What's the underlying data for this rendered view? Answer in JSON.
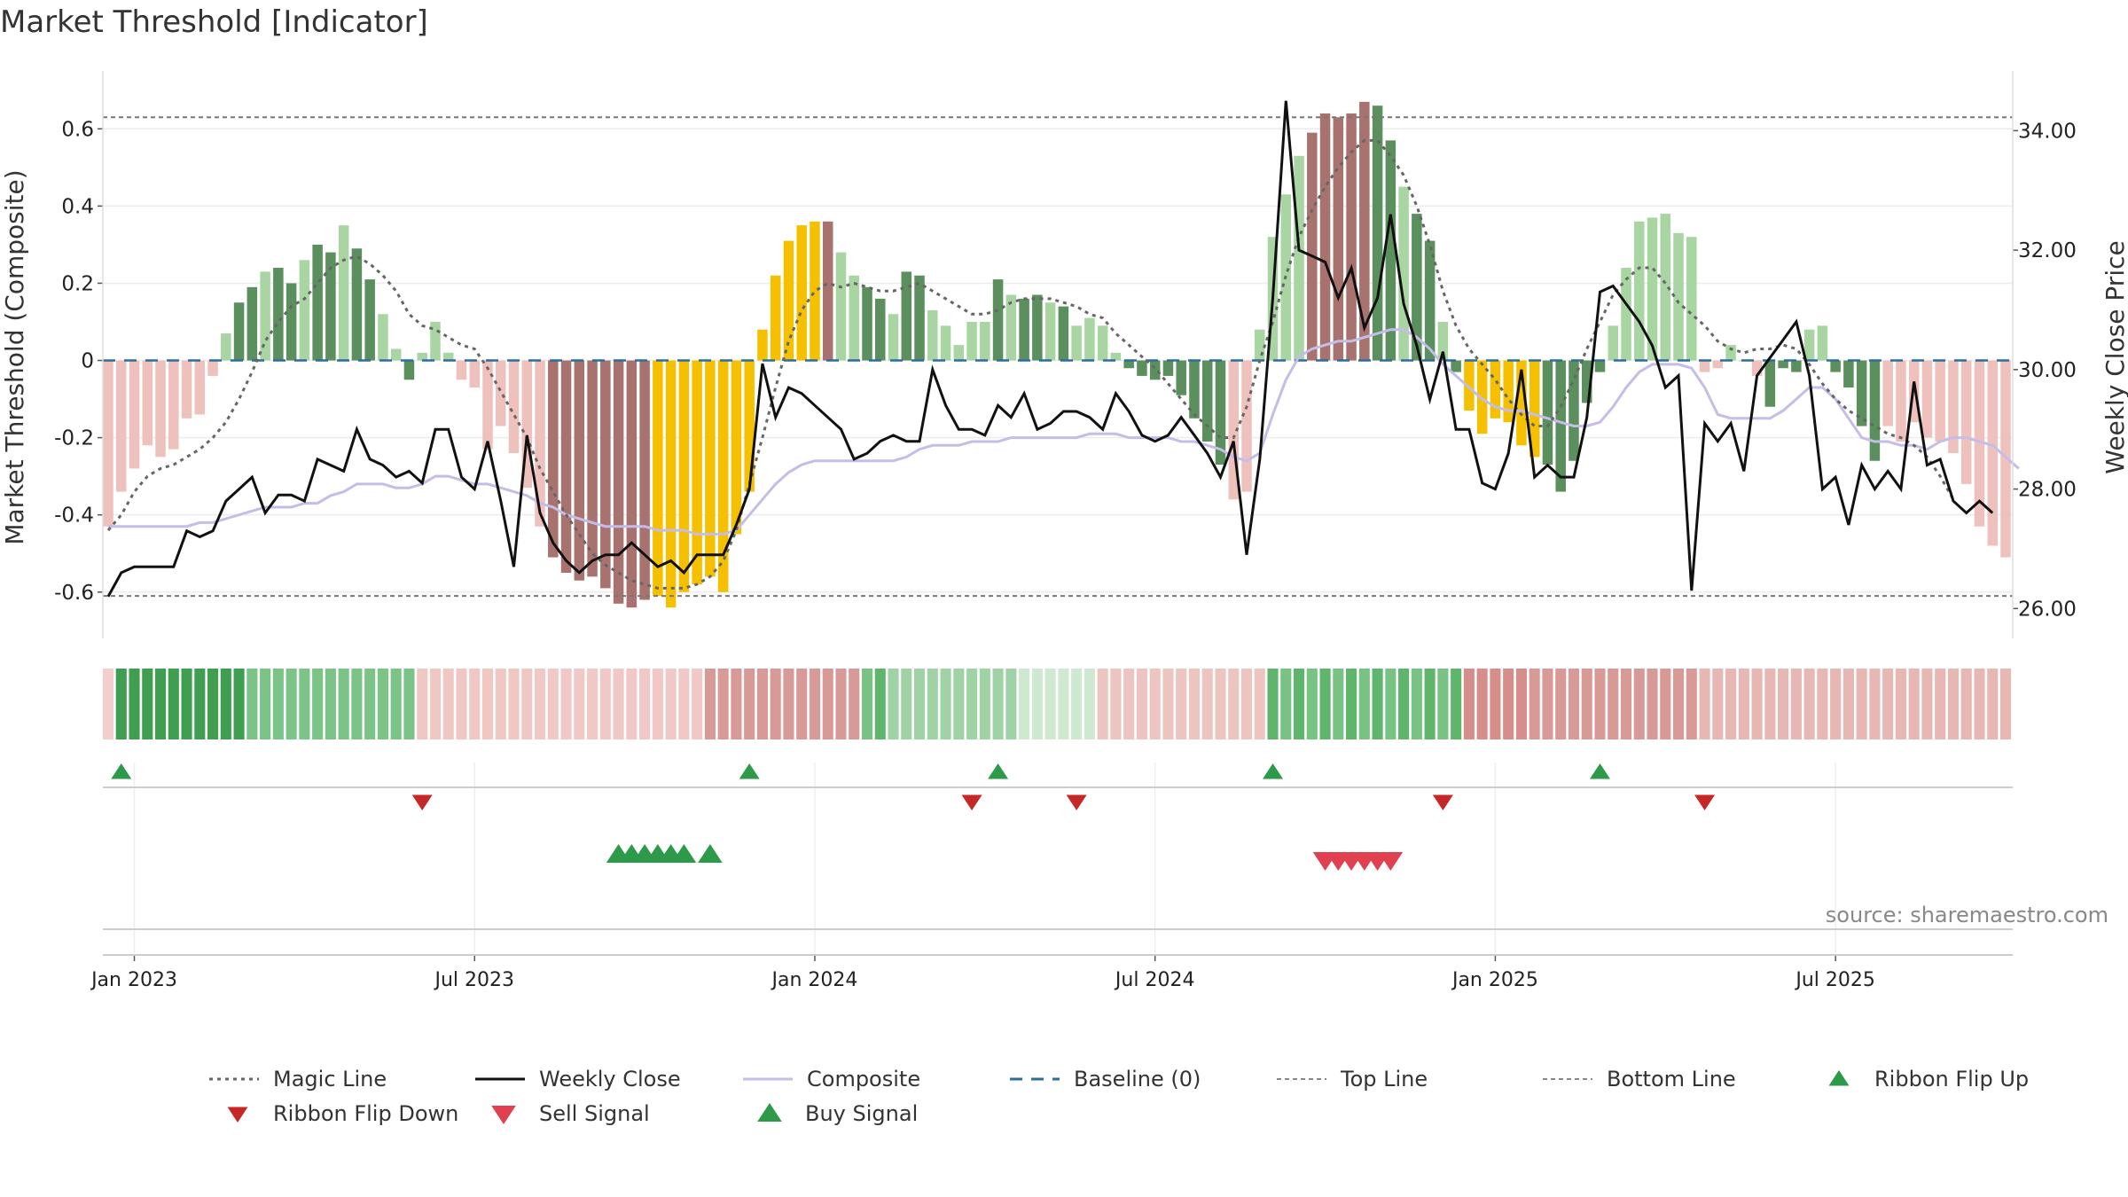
{
  "chart_data": {
    "type": "bar",
    "title": "Market Threshold [Indicator]",
    "ylabel_left": "Market Threshold (Composite)",
    "ylabel_right": "Weekly Close Price",
    "source": "source: sharemaestro.com",
    "ylim_left": [
      -0.72,
      0.75
    ],
    "ylim_right": [
      25.5,
      35.0
    ],
    "y_ticks_left": [
      {
        "v": 0.6,
        "label": "0.6"
      },
      {
        "v": 0.4,
        "label": "0.4"
      },
      {
        "v": 0.2,
        "label": "0.2"
      },
      {
        "v": 0,
        "label": "0"
      },
      {
        "v": -0.2,
        "label": "-0.2"
      },
      {
        "v": -0.4,
        "label": "-0.4"
      },
      {
        "v": -0.6,
        "label": "-0.6"
      }
    ],
    "y_ticks_right": [
      {
        "v": 34,
        "label": "34.00"
      },
      {
        "v": 32,
        "label": "32.00"
      },
      {
        "v": 30,
        "label": "30.00"
      },
      {
        "v": 28,
        "label": "28.00"
      },
      {
        "v": 26,
        "label": "26.00"
      }
    ],
    "x_ticks": [
      {
        "week": 2,
        "label": "Jan 2023"
      },
      {
        "week": 28,
        "label": "Jul 2023"
      },
      {
        "week": 54,
        "label": "Jan 2024"
      },
      {
        "week": 80,
        "label": "Jul 2024"
      },
      {
        "week": 106,
        "label": "Jan 2025"
      },
      {
        "week": 132,
        "label": "Jul 2025"
      }
    ],
    "top_line": 0.63,
    "bottom_line": -0.61,
    "composite_bars": [
      -0.43,
      -0.34,
      -0.28,
      -0.22,
      -0.25,
      -0.23,
      -0.15,
      -0.14,
      -0.04,
      0.07,
      0.15,
      0.19,
      0.23,
      0.24,
      0.2,
      0.26,
      0.3,
      0.28,
      0.35,
      0.29,
      0.21,
      0.12,
      0.03,
      -0.05,
      0.02,
      0.1,
      0.02,
      -0.05,
      -0.07,
      -0.23,
      -0.17,
      -0.24,
      -0.33,
      -0.43,
      -0.51,
      -0.55,
      -0.57,
      -0.56,
      -0.59,
      -0.63,
      -0.64,
      -0.62,
      -0.61,
      -0.64,
      -0.6,
      -0.58,
      -0.56,
      -0.6,
      -0.45,
      -0.34,
      0.08,
      0.22,
      0.31,
      0.35,
      0.36,
      0.36,
      0.28,
      0.22,
      0.19,
      0.16,
      0.12,
      0.23,
      0.22,
      0.13,
      0.09,
      0.04,
      0.1,
      0.1,
      0.21,
      0.17,
      0.16,
      0.17,
      0.15,
      0.14,
      0.09,
      0.11,
      0.09,
      0.02,
      -0.02,
      -0.04,
      -0.05,
      -0.04,
      -0.09,
      -0.15,
      -0.21,
      -0.27,
      -0.36,
      -0.34,
      0.08,
      0.32,
      0.43,
      0.53,
      0.59,
      0.64,
      0.63,
      0.64,
      0.67,
      0.66,
      0.57,
      0.45,
      0.38,
      0.31,
      0.1,
      -0.03,
      -0.13,
      -0.19,
      -0.15,
      -0.16,
      -0.22,
      -0.25,
      -0.27,
      -0.34,
      -0.26,
      -0.11,
      -0.03,
      0.09,
      0.24,
      0.36,
      0.37,
      0.38,
      0.33,
      0.32,
      -0.03,
      -0.02,
      0.04,
      0.0,
      -0.04,
      -0.12,
      -0.02,
      -0.03,
      0.08,
      0.09,
      -0.03,
      -0.07,
      -0.17,
      -0.26,
      -0.17,
      -0.21,
      -0.16,
      -0.2,
      -0.21,
      -0.24,
      -0.32,
      -0.43,
      -0.48,
      -0.51
    ],
    "bar_kind": "ppppppppppgggggggggggggggggpppppppddddddddyyyyyyyyyyyyydpgggggggggggggggggggggggggggggppppppdddddgggggggyyyyyyggggggpppppppppppgggggggggppppppppppdddddddd",
    "weekly_close": [
      26.2,
      26.6,
      26.7,
      26.7,
      26.7,
      26.7,
      27.3,
      27.2,
      27.3,
      27.8,
      28.0,
      28.2,
      27.6,
      27.9,
      27.9,
      27.8,
      28.5,
      28.4,
      28.3,
      29.0,
      28.5,
      28.4,
      28.2,
      28.3,
      28.1,
      29.0,
      29.0,
      28.2,
      28.0,
      28.8,
      27.8,
      26.7,
      28.9,
      27.6,
      27.1,
      26.8,
      26.6,
      26.8,
      26.9,
      26.9,
      27.1,
      26.9,
      26.7,
      26.8,
      26.6,
      26.9,
      26.9,
      26.9,
      27.4,
      28.0,
      30.1,
      29.2,
      29.7,
      29.6,
      29.4,
      29.2,
      29.0,
      28.5,
      28.6,
      28.8,
      28.9,
      28.8,
      28.8,
      30.0,
      29.4,
      29.0,
      29.0,
      28.9,
      29.4,
      29.2,
      29.6,
      29.0,
      29.1,
      29.3,
      29.3,
      29.2,
      29.0,
      29.6,
      29.3,
      28.9,
      28.8,
      28.9,
      29.2,
      28.9,
      28.6,
      28.2,
      28.8,
      26.9,
      28.5,
      31.2,
      34.5,
      32.0,
      31.9,
      31.8,
      31.2,
      31.7,
      30.7,
      31.2,
      32.6,
      31.1,
      30.4,
      29.5,
      30.3,
      29.0,
      29.0,
      28.1,
      28.0,
      28.6,
      30.0,
      28.2,
      28.4,
      28.2,
      28.2,
      29.2,
      31.3,
      31.4,
      31.1,
      30.8,
      30.4,
      29.7,
      29.9,
      26.3,
      29.1,
      28.8,
      29.1,
      28.3,
      29.9,
      30.2,
      30.5,
      30.8,
      29.9,
      28.0,
      28.2,
      27.4,
      28.4,
      28.0,
      28.3,
      28.0,
      29.8,
      28.4,
      28.5,
      27.8,
      27.6,
      27.8,
      27.6
    ],
    "composite_line": [
      -0.43,
      -0.43,
      -0.43,
      -0.43,
      -0.43,
      -0.43,
      -0.43,
      -0.42,
      -0.42,
      -0.41,
      -0.4,
      -0.39,
      -0.38,
      -0.38,
      -0.38,
      -0.37,
      -0.37,
      -0.35,
      -0.34,
      -0.32,
      -0.32,
      -0.32,
      -0.33,
      -0.33,
      -0.32,
      -0.3,
      -0.3,
      -0.31,
      -0.32,
      -0.32,
      -0.33,
      -0.34,
      -0.35,
      -0.37,
      -0.38,
      -0.4,
      -0.41,
      -0.42,
      -0.43,
      -0.43,
      -0.43,
      -0.43,
      -0.44,
      -0.44,
      -0.44,
      -0.45,
      -0.45,
      -0.45,
      -0.44,
      -0.4,
      -0.36,
      -0.32,
      -0.29,
      -0.27,
      -0.26,
      -0.26,
      -0.26,
      -0.26,
      -0.26,
      -0.26,
      -0.26,
      -0.25,
      -0.23,
      -0.22,
      -0.22,
      -0.22,
      -0.21,
      -0.21,
      -0.21,
      -0.2,
      -0.2,
      -0.2,
      -0.2,
      -0.2,
      -0.2,
      -0.19,
      -0.19,
      -0.19,
      -0.2,
      -0.2,
      -0.2,
      -0.2,
      -0.21,
      -0.21,
      -0.22,
      -0.23,
      -0.25,
      -0.26,
      -0.24,
      -0.14,
      -0.05,
      0.01,
      0.03,
      0.04,
      0.05,
      0.05,
      0.06,
      0.07,
      0.08,
      0.08,
      0.06,
      0.03,
      -0.01,
      -0.04,
      -0.07,
      -0.1,
      -0.12,
      -0.13,
      -0.13,
      -0.14,
      -0.15,
      -0.16,
      -0.17,
      -0.17,
      -0.16,
      -0.12,
      -0.07,
      -0.03,
      -0.01,
      -0.01,
      -0.01,
      -0.02,
      -0.07,
      -0.14,
      -0.15,
      -0.15,
      -0.15,
      -0.15,
      -0.13,
      -0.1,
      -0.07,
      -0.07,
      -0.1,
      -0.15,
      -0.2,
      -0.21,
      -0.21,
      -0.22,
      -0.22,
      -0.23,
      -0.21,
      -0.2,
      -0.2,
      -0.21,
      -0.22,
      -0.25,
      -0.28
    ],
    "magic_line": [
      -0.44,
      -0.4,
      -0.34,
      -0.3,
      -0.28,
      -0.27,
      -0.25,
      -0.23,
      -0.2,
      -0.16,
      -0.1,
      -0.03,
      0.05,
      0.1,
      0.14,
      0.16,
      0.2,
      0.24,
      0.26,
      0.27,
      0.25,
      0.22,
      0.18,
      0.12,
      0.09,
      0.08,
      0.06,
      0.04,
      0.03,
      -0.02,
      -0.08,
      -0.14,
      -0.2,
      -0.28,
      -0.34,
      -0.4,
      -0.45,
      -0.5,
      -0.53,
      -0.55,
      -0.57,
      -0.58,
      -0.59,
      -0.59,
      -0.59,
      -0.58,
      -0.56,
      -0.52,
      -0.44,
      -0.32,
      -0.2,
      -0.07,
      0.05,
      0.13,
      0.18,
      0.2,
      0.19,
      0.2,
      0.19,
      0.18,
      0.18,
      0.19,
      0.2,
      0.18,
      0.16,
      0.14,
      0.12,
      0.12,
      0.13,
      0.15,
      0.16,
      0.16,
      0.16,
      0.15,
      0.14,
      0.12,
      0.11,
      0.07,
      0.04,
      0.01,
      -0.02,
      -0.06,
      -0.1,
      -0.14,
      -0.17,
      -0.2,
      -0.2,
      -0.12,
      0.0,
      0.1,
      0.22,
      0.32,
      0.39,
      0.45,
      0.5,
      0.54,
      0.57,
      0.57,
      0.53,
      0.48,
      0.4,
      0.3,
      0.18,
      0.09,
      0.03,
      -0.01,
      -0.05,
      -0.1,
      -0.14,
      -0.17,
      -0.17,
      -0.12,
      -0.05,
      0.03,
      0.1,
      0.17,
      0.21,
      0.24,
      0.24,
      0.2,
      0.15,
      0.12,
      0.09,
      0.05,
      0.03,
      0.02,
      0.03,
      0.03,
      0.04,
      0.03,
      -0.01,
      -0.06,
      -0.1,
      -0.13,
      -0.15,
      -0.17,
      -0.19,
      -0.2,
      -0.22,
      -0.25,
      -0.3,
      -0.36
    ],
    "ribbon": "lccccccccccbbbbbbbbbbbbbbbbbbbbbbdddddddddddddeeeeeeeeeeeebbbbbbbbbbbbbbbbbbbbbbbbbbbbbbbbbbbbbbbbbbbbbbbbbbbeeeeeeeeeeeeeaaaaaaaaaaaaaaaaaaaaaaaaaaaaaaaaaaaaaaaa",
    "ribbon_flip_up": [
      1,
      49,
      68,
      89,
      114
    ],
    "ribbon_flip_down": [
      24,
      66,
      74,
      102,
      122
    ],
    "buy_signal": [
      39,
      40,
      41,
      42,
      43,
      44,
      46
    ],
    "sell_signal": [
      93,
      94,
      95,
      96,
      97,
      98
    ],
    "legend": [
      {
        "key": "magic",
        "label": "Magic Line"
      },
      {
        "key": "close",
        "label": "Weekly Close"
      },
      {
        "key": "composite",
        "label": "Composite"
      },
      {
        "key": "baseline",
        "label": "Baseline (0)"
      },
      {
        "key": "top",
        "label": "Top Line"
      },
      {
        "key": "bottom",
        "label": "Bottom Line"
      },
      {
        "key": "flipup",
        "label": "Ribbon Flip Up"
      },
      {
        "key": "flipdown",
        "label": "Ribbon Flip Down"
      },
      {
        "key": "sell",
        "label": "Sell Signal"
      },
      {
        "key": "buy",
        "label": "Buy Signal"
      }
    ],
    "colors": {
      "pos_strong": "#5b8f5e",
      "pos_light": "#a8d5a2",
      "neg_light": "#efc1bd",
      "neg_dark": "#a8736f",
      "extreme": "#f5c000",
      "close": "#111111",
      "composite": "#c4bde8",
      "magic": "#666666",
      "baseline": "#2c6e9b",
      "flip_up": "#2d9a4a",
      "flip_down": "#c62828",
      "sell": "#e04050",
      "buy": "#2d9a4a"
    }
  }
}
